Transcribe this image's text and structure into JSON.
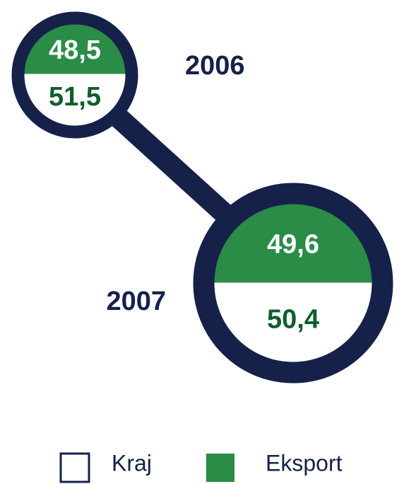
{
  "chart_data": {
    "type": "split-circle",
    "categories": [
      "2006",
      "2007"
    ],
    "series": [
      {
        "name": "Kraj",
        "color": "#ffffff",
        "values": [
          51.5,
          50.4
        ],
        "value_labels": [
          "51,5",
          "50,4"
        ]
      },
      {
        "name": "Eksport",
        "color": "#2a8c47",
        "values": [
          48.5,
          49.6
        ],
        "value_labels": [
          "48,5",
          "49,6"
        ]
      }
    ]
  }
}
